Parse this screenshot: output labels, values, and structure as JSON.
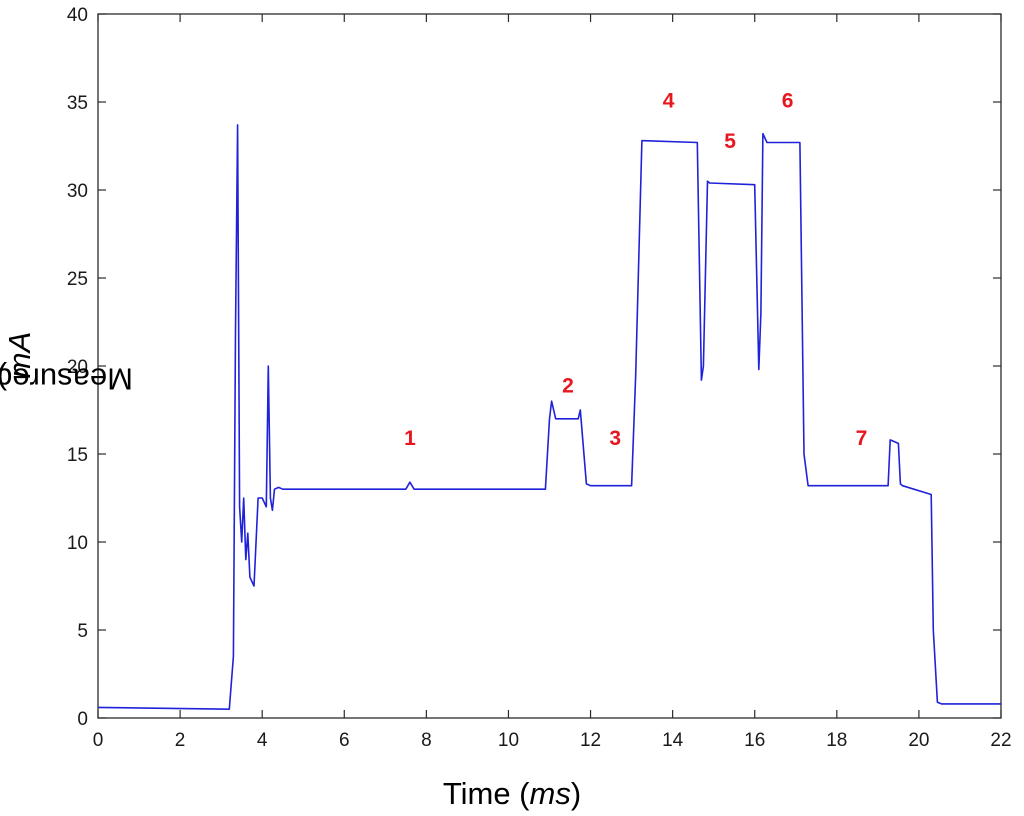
{
  "chart_data": {
    "type": "line",
    "xlabel": "Time (ms)",
    "xlabel_parts": {
      "prefix": "Time (",
      "unit": "ms",
      "suffix": ")"
    },
    "ylabel": "Measured current (mA)",
    "ylabel_parts": {
      "prefix": "Measured current (",
      "unit": "mA",
      "suffix": ")"
    },
    "xlim": [
      0,
      22
    ],
    "ylim": [
      0,
      40
    ],
    "xticks": [
      "0",
      "2",
      "4",
      "6",
      "8",
      "10",
      "12",
      "14",
      "16",
      "18",
      "20",
      "22"
    ],
    "yticks": [
      "0",
      "5",
      "10",
      "15",
      "20",
      "25",
      "30",
      "35",
      "40"
    ],
    "grid": false,
    "series": [
      {
        "color": "#1f22d9",
        "x": [
          0,
          3.2,
          3.3,
          3.35,
          3.4,
          3.45,
          3.5,
          3.55,
          3.6,
          3.65,
          3.7,
          3.8,
          3.9,
          4.0,
          4.1,
          4.15,
          4.2,
          4.25,
          4.3,
          4.4,
          4.5,
          7.5,
          7.6,
          7.7,
          10.9,
          11.0,
          11.05,
          11.15,
          11.3,
          11.7,
          11.75,
          11.9,
          12.0,
          13.0,
          13.1,
          13.25,
          13.3,
          14.6,
          14.7,
          14.75,
          14.85,
          14.9,
          16.0,
          16.1,
          16.15,
          16.2,
          16.3,
          16.35,
          17.1,
          17.2,
          17.3,
          17.4,
          19.25,
          19.3,
          19.5,
          19.55,
          19.6,
          20.3,
          20.35,
          20.45,
          20.55,
          22.0
        ],
        "y": [
          0.6,
          0.5,
          3.5,
          22,
          33.7,
          12,
          10,
          12.5,
          9,
          10.5,
          8,
          7.5,
          12.5,
          12.5,
          12,
          20,
          12.5,
          11.8,
          13,
          13.1,
          13.0,
          13.0,
          13.4,
          13.0,
          13.0,
          17,
          18,
          17,
          17,
          17,
          17.5,
          13.3,
          13.2,
          13.2,
          19.5,
          32.8,
          32.8,
          32.7,
          19.2,
          20,
          30.5,
          30.4,
          30.3,
          19.8,
          23,
          33.2,
          32.7,
          32.7,
          32.7,
          15,
          13.2,
          13.2,
          13.2,
          15.8,
          15.6,
          13.3,
          13.2,
          12.7,
          5,
          0.9,
          0.8,
          0.8
        ]
      }
    ],
    "annotations": [
      {
        "text": "1",
        "x": 7.6,
        "y": 15.5,
        "color": "#e8161e"
      },
      {
        "text": "2",
        "x": 11.45,
        "y": 18.5,
        "color": "#e8161e"
      },
      {
        "text": "3",
        "x": 12.6,
        "y": 15.5,
        "color": "#e8161e"
      },
      {
        "text": "4",
        "x": 13.9,
        "y": 34.7,
        "color": "#e8161e"
      },
      {
        "text": "5",
        "x": 15.4,
        "y": 32.4,
        "color": "#e8161e"
      },
      {
        "text": "6",
        "x": 16.8,
        "y": 34.7,
        "color": "#e8161e"
      },
      {
        "text": "7",
        "x": 18.6,
        "y": 15.5,
        "color": "#e8161e"
      }
    ]
  }
}
